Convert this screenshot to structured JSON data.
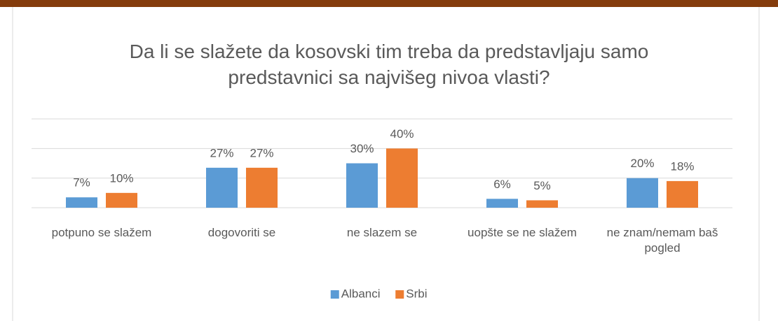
{
  "chart_data": {
    "type": "bar",
    "title": "Da li se slažete da kosovski tim treba da predstavljaju samo predstavnici sa najvišeg nivoa vlasti?",
    "categories": [
      "potpuno se slažem",
      "dogovoriti se",
      "ne slazem se",
      "uopšte se ne slažem",
      "ne znam/nemam baš pogled"
    ],
    "series": [
      {
        "name": "Albanci",
        "color": "#5b9bd5",
        "values": [
          7,
          27,
          30,
          6,
          20
        ],
        "value_labels": [
          "7%",
          "27%",
          "30%",
          "6%",
          "20%"
        ]
      },
      {
        "name": "Srbi",
        "color": "#ed7d31",
        "values": [
          10,
          27,
          40,
          5,
          18
        ],
        "value_labels": [
          "10%",
          "27%",
          "40%",
          "5%",
          "18%"
        ]
      }
    ],
    "ylim": [
      0,
      60
    ],
    "yticks": [
      0,
      20,
      40,
      60
    ],
    "grid": true,
    "legend": "bottom"
  }
}
